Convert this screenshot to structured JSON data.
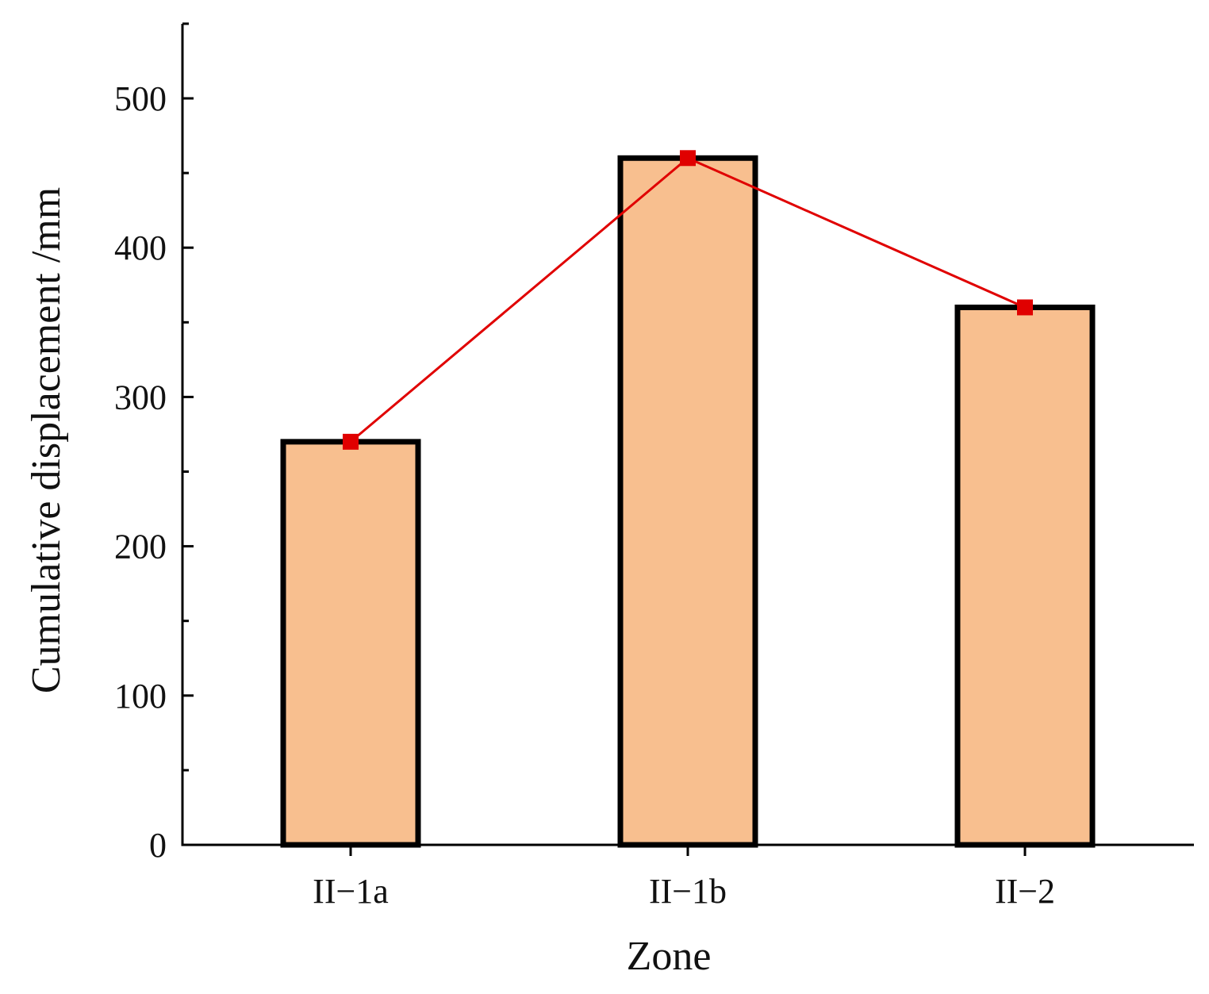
{
  "chart_data": {
    "type": "bar",
    "categories": [
      "II−1a",
      "II−1b",
      "II−2"
    ],
    "values": [
      270,
      460,
      360
    ],
    "line_overlay": {
      "values": [
        270,
        460,
        360
      ],
      "marker": "square"
    },
    "title": "",
    "xlabel": "Zone",
    "ylabel": "Cumulative displacement /mm",
    "ylim": [
      0,
      550
    ],
    "yticks": [
      0,
      100,
      200,
      300,
      400,
      500
    ],
    "grid": false,
    "legend": "none"
  },
  "colors": {
    "bar_fill": "#f8bf8f",
    "bar_edge": "#000000",
    "line": "#e00000",
    "marker": "#e00000",
    "axis": "#000000"
  }
}
